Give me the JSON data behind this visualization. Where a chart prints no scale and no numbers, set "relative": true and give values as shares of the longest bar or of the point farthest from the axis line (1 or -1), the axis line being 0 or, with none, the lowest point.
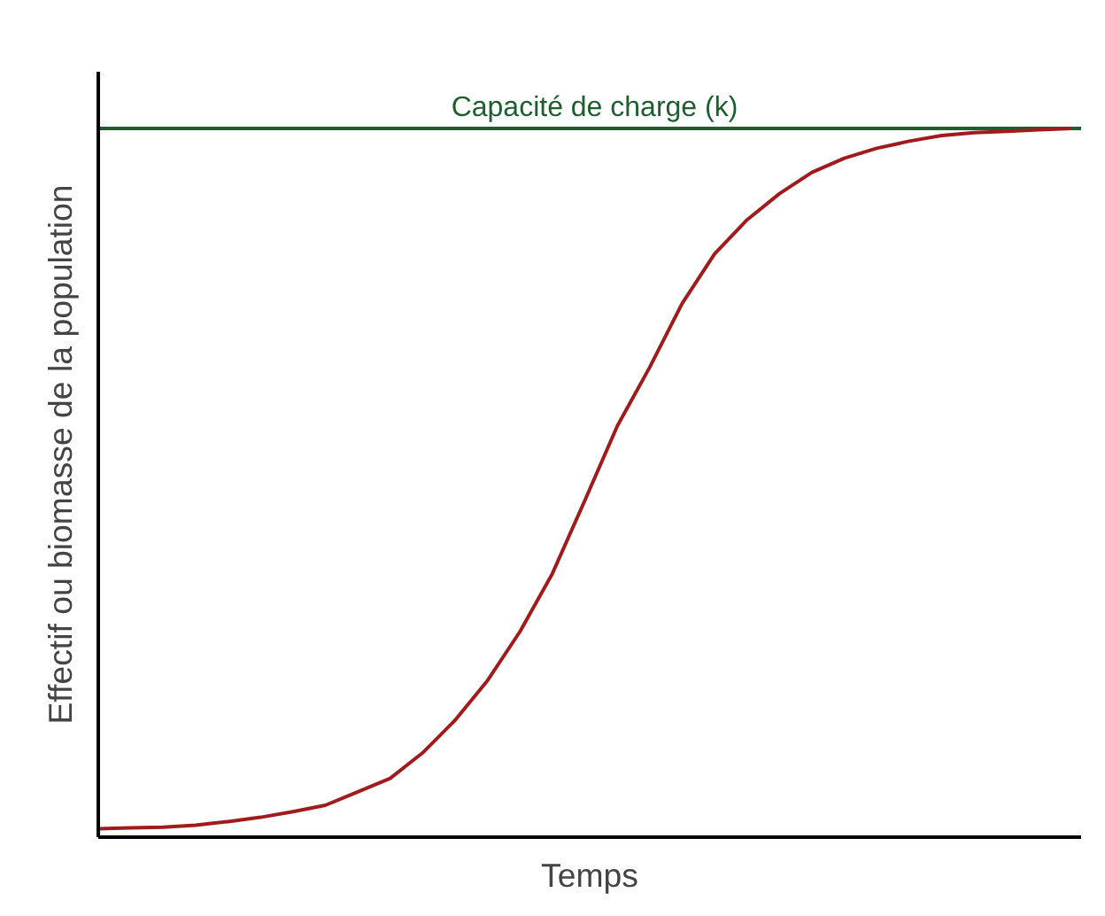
{
  "chart_data": {
    "type": "line",
    "relative": true,
    "xlabel": "Temps",
    "ylabel": "Effectif ou biomasse de la population",
    "categories": [
      null,
      null,
      null,
      null,
      null,
      null,
      null,
      null,
      null,
      null,
      null,
      null,
      null,
      null,
      null,
      null,
      null,
      null,
      null,
      null,
      null,
      null,
      null,
      null,
      null,
      null,
      null,
      null,
      null,
      null,
      null
    ],
    "series": [
      {
        "color": "#a01c1c",
        "values": [
          0.012,
          0.013,
          0.014,
          0.017,
          0.022,
          0.028,
          0.036,
          0.045,
          0.064,
          0.083,
          0.119,
          0.165,
          0.221,
          0.29,
          0.372,
          0.475,
          0.58,
          0.663,
          0.753,
          0.823,
          0.871,
          0.908,
          0.938,
          0.958,
          0.972,
          0.982,
          0.99,
          0.994,
          0.996,
          0.998,
          1.0
        ]
      }
    ],
    "ref_lines": [
      {
        "axis": "y",
        "value": 1.0,
        "label": "Capacité de charge (k)",
        "color": "#1e5e2e"
      }
    ],
    "grid": false,
    "marker": "none",
    "line_style": "solid"
  }
}
